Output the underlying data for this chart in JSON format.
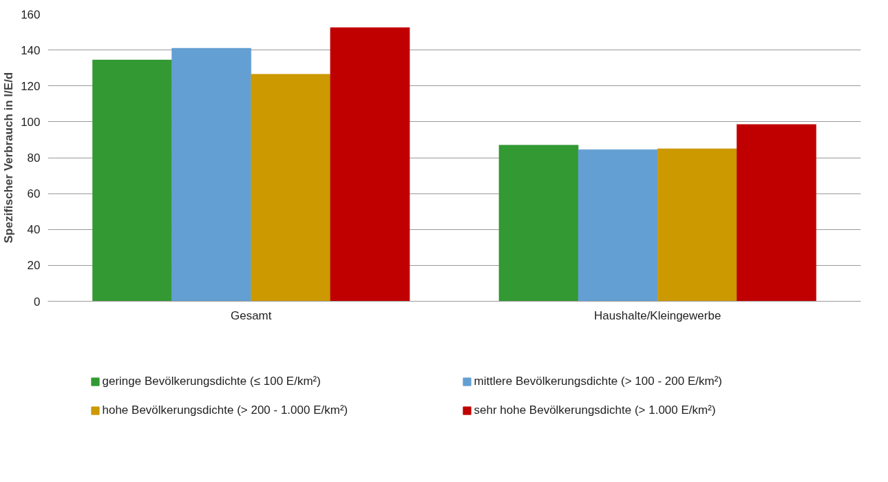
{
  "chart_data": {
    "type": "bar",
    "ylabel": "Spezifischer Verbrauch in l/E/d",
    "categories": [
      "Gesamt",
      "Haushalte/Kleingewerbe"
    ],
    "series": [
      {
        "name": "geringe Bevölkerungsdichte (≤ 100 E/km²)",
        "color": "#339933",
        "values": [
          134.5,
          87
        ]
      },
      {
        "name": "mittlere Bevölkerungsdichte (> 100 - 200 E/km²)",
        "color": "#639fd2",
        "values": [
          141,
          84.5
        ]
      },
      {
        "name": "hohe Bevölkerungsdichte (> 200 - 1.000 E/km²)",
        "color": "#cc9900",
        "values": [
          126.5,
          85
        ]
      },
      {
        "name": "sehr hohe Bevölkerungsdichte (> 1.000 E/km²)",
        "color": "#c00000",
        "values": [
          152.5,
          98.5
        ]
      }
    ],
    "ylim": [
      0,
      160
    ],
    "yticks": [
      0,
      20,
      40,
      60,
      80,
      100,
      120,
      140,
      160
    ],
    "grid": "y",
    "legend": "bottom"
  }
}
